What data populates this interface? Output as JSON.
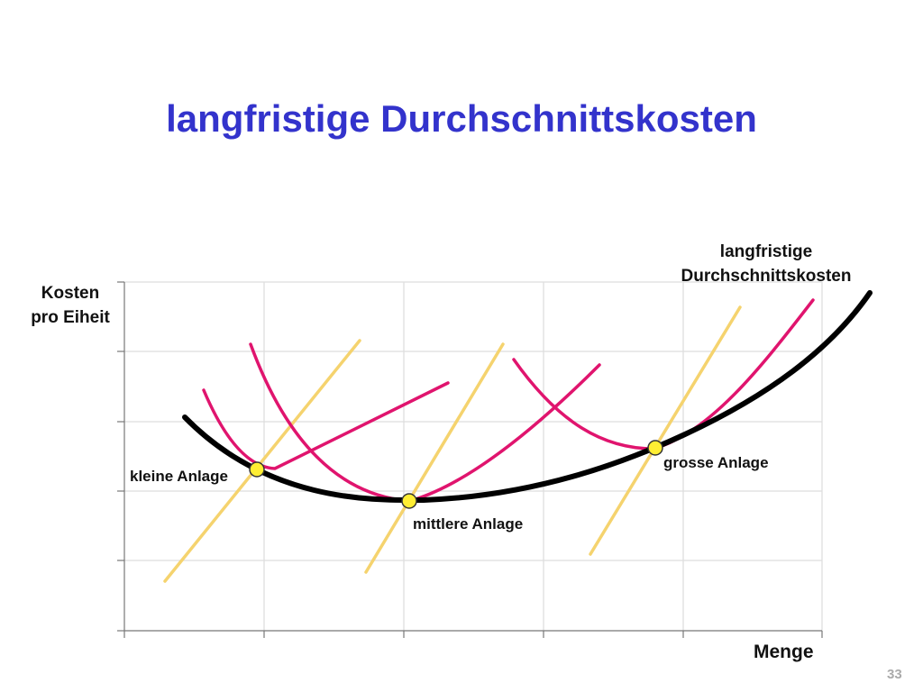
{
  "slide": {
    "title": "langfristige Durchschnittskosten",
    "y_axis_label_line1": "Kosten",
    "y_axis_label_line2": "pro Eiheit",
    "curve_label_line1": "langfristige",
    "curve_label_line2": "Durchschnittskosten",
    "x_axis_label": "Menge",
    "plant_small": "kleine Anlage",
    "plant_medium": "mittlere Anlage",
    "plant_large": "grosse Anlage",
    "page_number": "33"
  },
  "colors": {
    "title": "#3333cc",
    "lrac_curve": "#000000",
    "srac_curves": "#e0146e",
    "diagonal_lines": "#f5d36e",
    "tangent_points": "#ffee33",
    "grid": "#dddddd"
  }
}
